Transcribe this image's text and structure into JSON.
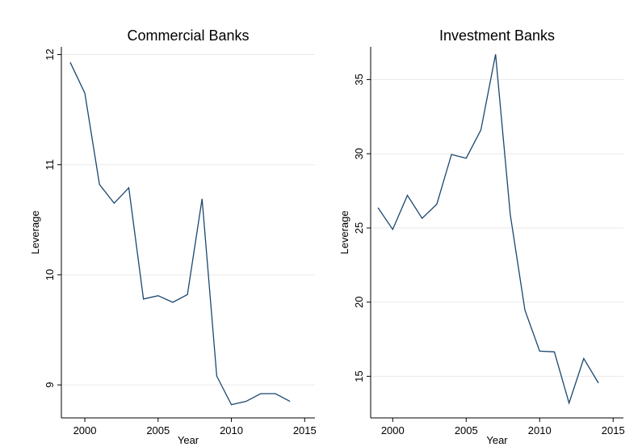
{
  "chart_data": [
    {
      "type": "line",
      "title": "Commercial Banks",
      "x_label": "Year",
      "y_label": "Leverage",
      "x": [
        1999,
        2000,
        2001,
        2002,
        2003,
        2004,
        2005,
        2006,
        2007,
        2008,
        2009,
        2010,
        2011,
        2012,
        2013,
        2014
      ],
      "series": [
        {
          "color": "#1a476f",
          "values": [
            11.93,
            11.65,
            10.82,
            10.65,
            10.79,
            9.78,
            9.81,
            9.75,
            9.82,
            10.69,
            9.08,
            8.82,
            8.85,
            8.92,
            8.92,
            8.85
          ]
        }
      ],
      "xlim": [
        1998.4,
        2015.7
      ],
      "xticks": [
        2000,
        2005,
        2010,
        2015
      ],
      "ylim": [
        8.7,
        12.07
      ],
      "yticks": [
        9,
        10,
        11,
        12
      ],
      "grid": true
    },
    {
      "type": "line",
      "title": "Investment Banks",
      "x_label": "Year",
      "y_label": "Leverage",
      "x": [
        1999,
        2000,
        2001,
        2002,
        2003,
        2004,
        2005,
        2006,
        2007,
        2008,
        2009,
        2010,
        2011,
        2012,
        2013,
        2014
      ],
      "series": [
        {
          "color": "#1a476f",
          "values": [
            26.36,
            24.9,
            27.2,
            25.65,
            26.6,
            29.95,
            29.7,
            31.6,
            36.7,
            25.9,
            19.45,
            16.7,
            16.65,
            13.2,
            16.2,
            14.55
          ]
        }
      ],
      "xlim": [
        1998.5,
        2015.7
      ],
      "xticks": [
        2000,
        2005,
        2010,
        2015
      ],
      "ylim": [
        12.2,
        37.2
      ],
      "yticks": [
        15,
        20,
        25,
        30,
        35
      ],
      "grid": true
    }
  ]
}
